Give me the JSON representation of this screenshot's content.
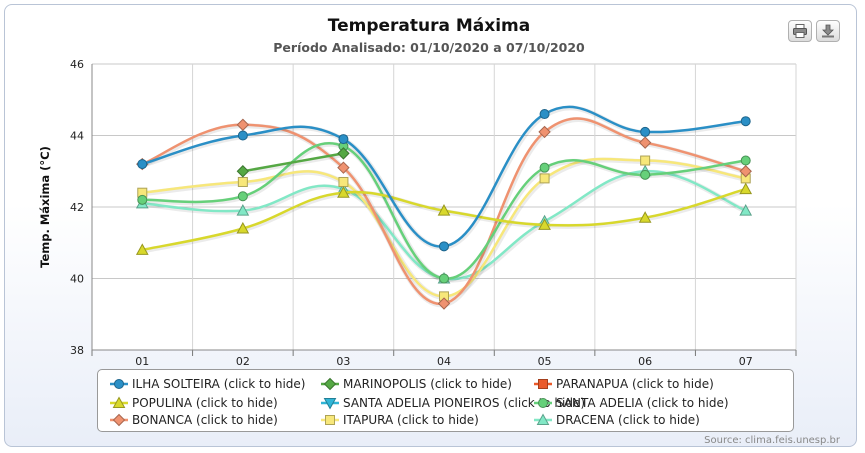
{
  "chart_data": {
    "type": "line",
    "title": "Temperatura Máxima",
    "subtitle": "Período Analisado: 01/10/2020 a 07/10/2020",
    "ylabel": "Temp. Máxima (°C)",
    "xlabel": "",
    "categories": [
      "01",
      "02",
      "03",
      "04",
      "05",
      "06",
      "07"
    ],
    "y_ticks": [
      "38",
      "40",
      "42",
      "44",
      "46"
    ],
    "ylim": [
      38,
      46
    ],
    "grid": true,
    "legend_position": "bottom",
    "series": [
      {
        "name": "ILHA SOLTEIRA",
        "color": "#2a8fc6",
        "marker": "circle",
        "values": [
          43.2,
          44.0,
          43.9,
          40.9,
          44.6,
          44.1,
          44.4
        ]
      },
      {
        "name": "MARINOPOLIS",
        "color": "#55a844",
        "marker": "diamond",
        "values": [
          null,
          43.0,
          43.5,
          null,
          null,
          null,
          null
        ]
      },
      {
        "name": "PARANAPUA",
        "color": "#ea5a2a",
        "marker": "square",
        "values": [
          null,
          null,
          null,
          null,
          null,
          null,
          null
        ]
      },
      {
        "name": "POPULINA",
        "color": "#d8d82c",
        "marker": "triangle",
        "values": [
          40.8,
          41.4,
          42.4,
          41.9,
          41.5,
          41.7,
          42.5
        ]
      },
      {
        "name": "SANTA ADELIA PIONEIROS",
        "color": "#30b5d6",
        "marker": "triangle-down",
        "values": [
          null,
          null,
          null,
          null,
          null,
          null,
          null
        ]
      },
      {
        "name": "SANTA ADELIA",
        "color": "#66d07a",
        "marker": "circle",
        "values": [
          42.2,
          42.3,
          43.7,
          40.0,
          43.1,
          42.9,
          43.3
        ]
      },
      {
        "name": "BONANCA",
        "color": "#ef9270",
        "marker": "diamond",
        "values": [
          43.2,
          44.3,
          43.1,
          39.3,
          44.1,
          43.8,
          43.0
        ]
      },
      {
        "name": "ITAPURA",
        "color": "#f7e77a",
        "marker": "square",
        "values": [
          42.4,
          42.7,
          42.7,
          39.5,
          42.8,
          43.3,
          42.8
        ]
      },
      {
        "name": "DRACENA",
        "color": "#82e8c6",
        "marker": "triangle",
        "values": [
          42.1,
          41.9,
          42.5,
          40.0,
          41.6,
          43.0,
          41.9
        ]
      }
    ],
    "legend_suffix": " (click to hide)",
    "credit": "Source: clima.feis.unesp.br"
  },
  "toolbar": {
    "print_icon": "printer-icon",
    "download_icon": "download-icon"
  }
}
